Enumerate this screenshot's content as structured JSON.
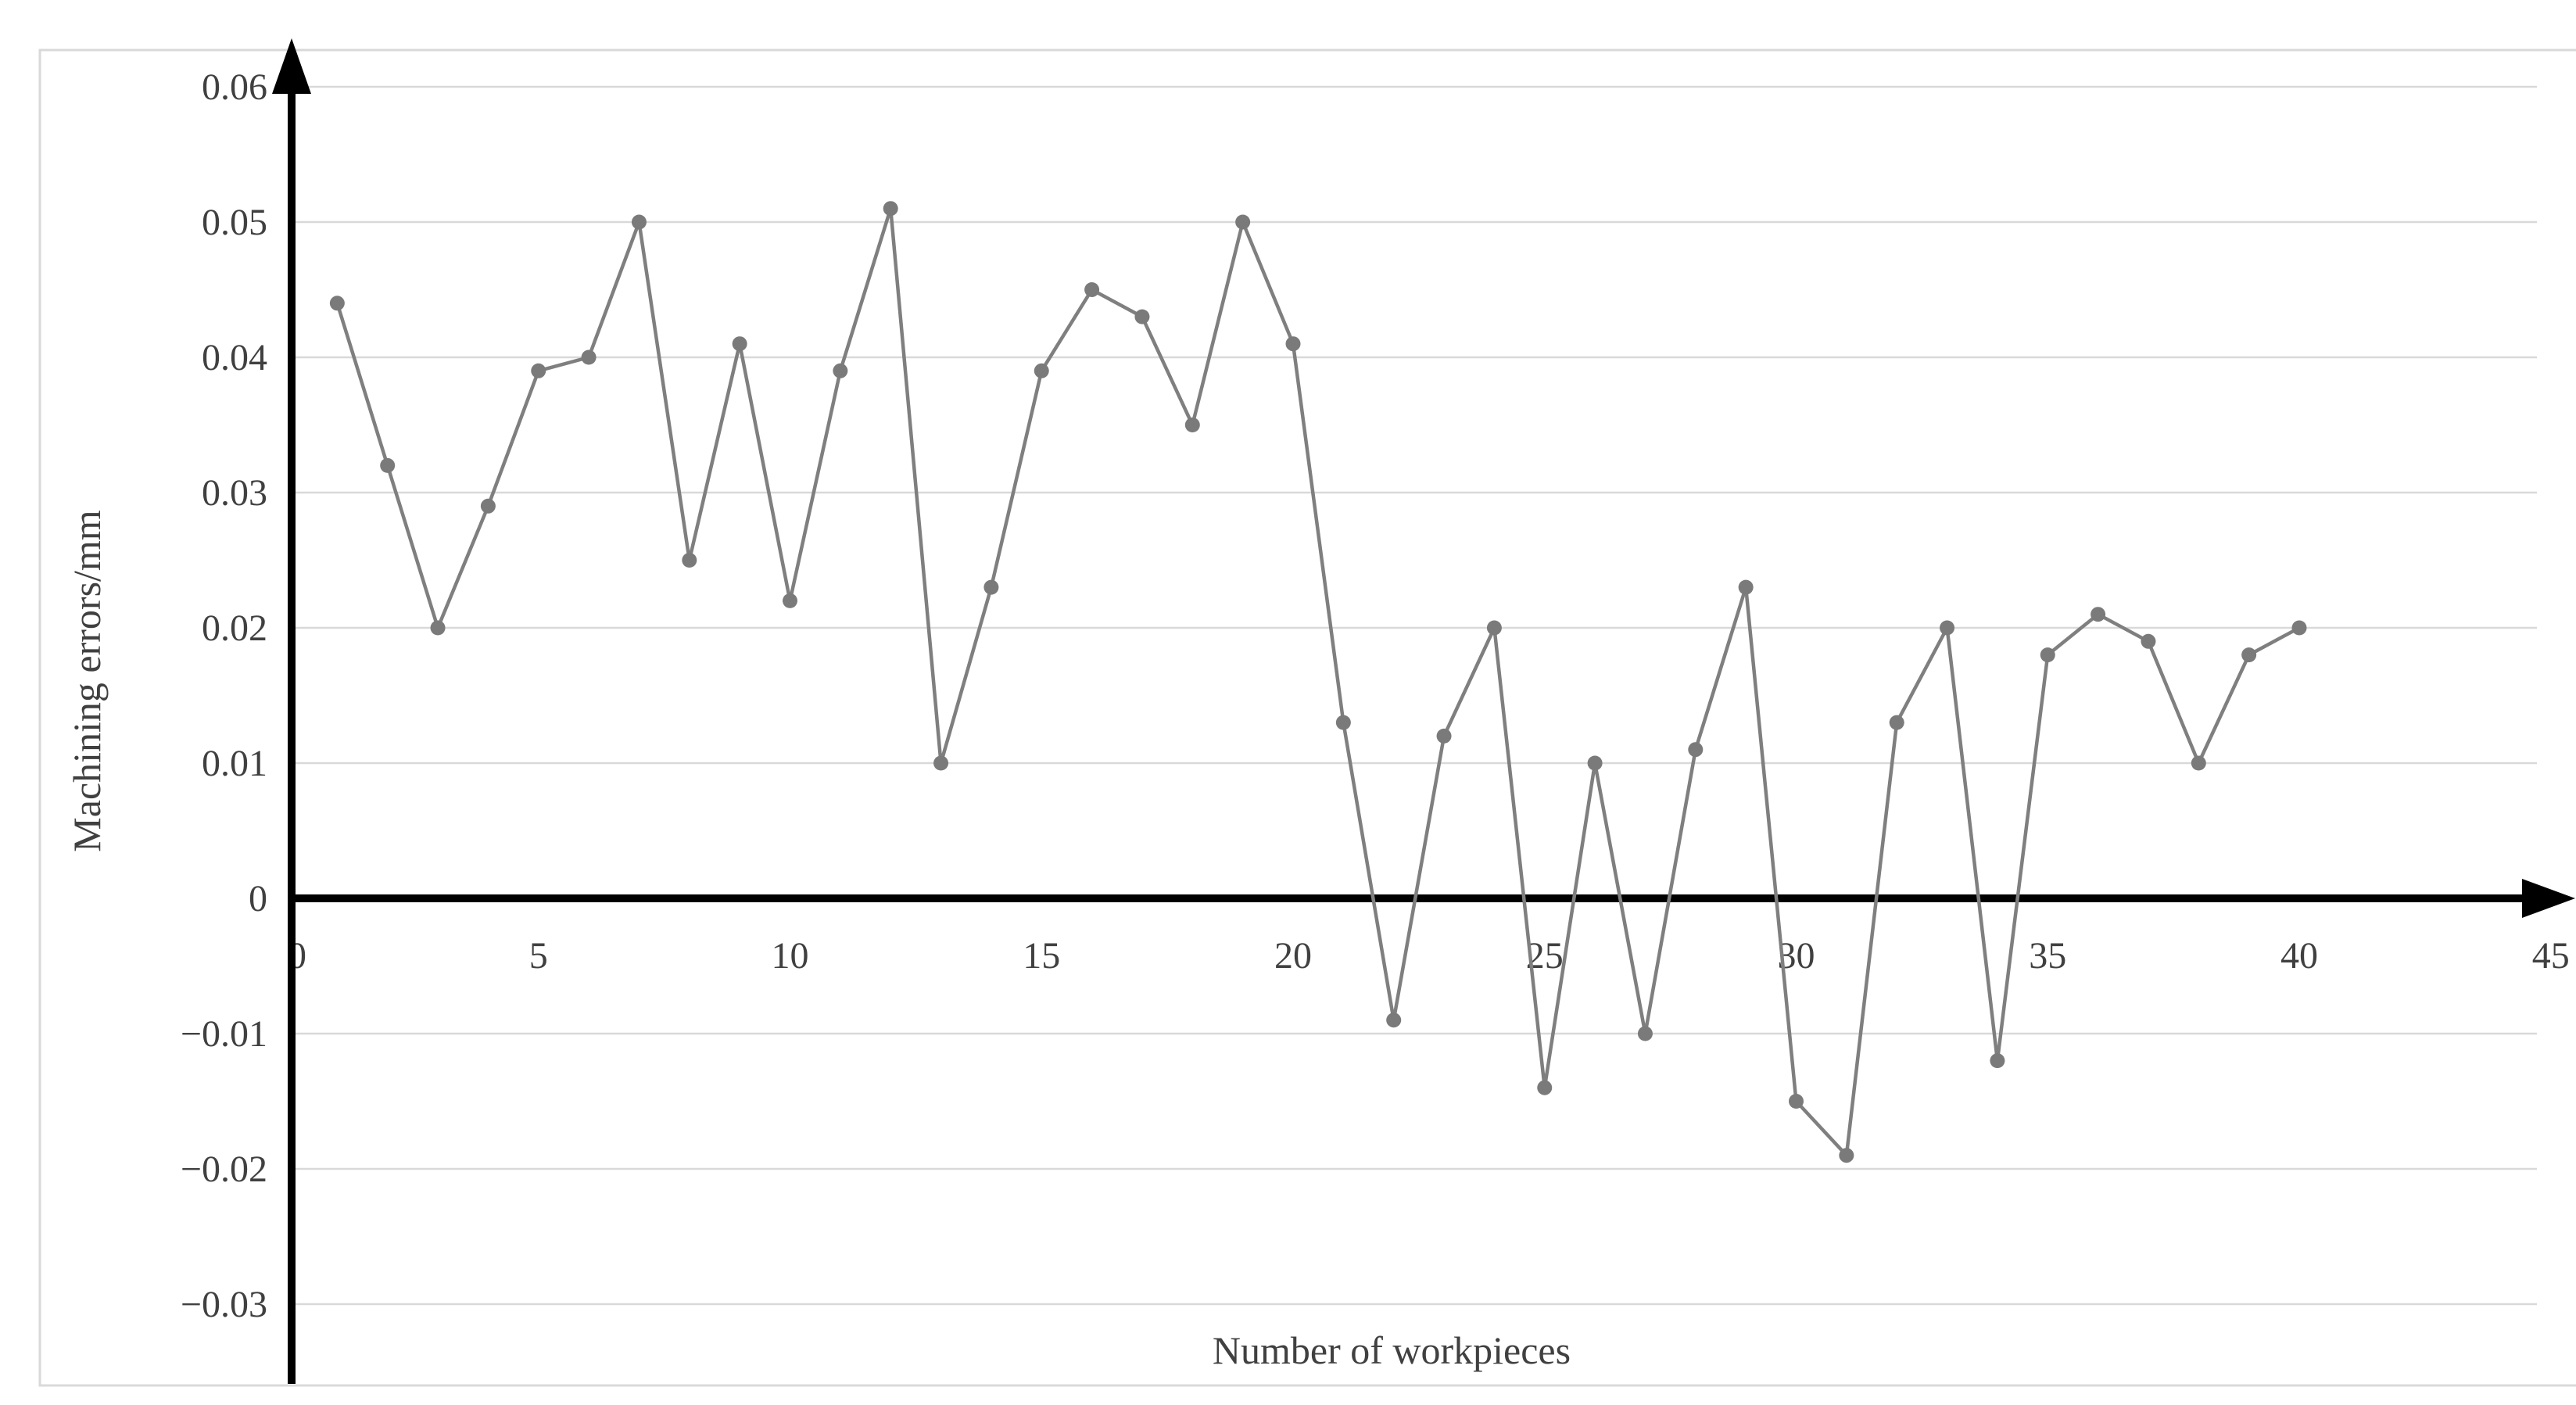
{
  "chart_data": {
    "type": "line",
    "title": "",
    "xlabel": "Number of workpieces",
    "ylabel": "Machining errors/mm",
    "series": [
      {
        "name": "Machining errors",
        "x": [
          1,
          2,
          3,
          4,
          5,
          6,
          7,
          8,
          9,
          10,
          11,
          12,
          13,
          14,
          15,
          16,
          17,
          18,
          19,
          20,
          21,
          22,
          23,
          24,
          25,
          26,
          27,
          28,
          29,
          30,
          31,
          32,
          33,
          34,
          35,
          36,
          37,
          38,
          39,
          40
        ],
        "values": [
          0.044,
          0.032,
          0.02,
          0.029,
          0.039,
          0.04,
          0.05,
          0.025,
          0.041,
          0.022,
          0.039,
          0.051,
          0.01,
          0.023,
          0.039,
          0.045,
          0.043,
          0.035,
          0.05,
          0.041,
          0.013,
          -0.009,
          0.012,
          0.02,
          -0.014,
          0.01,
          -0.01,
          0.011,
          0.023,
          -0.015,
          -0.019,
          0.013,
          0.02,
          -0.012,
          0.018,
          0.021,
          0.019,
          0.01,
          0.018,
          0.02
        ]
      }
    ],
    "xlim": [
      0,
      45
    ],
    "ylim": [
      -0.0302,
      0.0626
    ],
    "x_ticks": [
      0,
      5,
      10,
      15,
      20,
      25,
      30,
      35,
      40,
      45
    ],
    "x_tick_labels": [
      "0",
      "5",
      "10",
      "15",
      "20",
      "25",
      "30",
      "35",
      "40",
      "45"
    ],
    "y_ticks": [
      0.06,
      0.05,
      0.04,
      0.03,
      0.02,
      0.01,
      0,
      -0.01,
      -0.02,
      -0.03
    ],
    "y_tick_labels": [
      "0.06",
      "0.05",
      "0.04",
      "0.03",
      "0.02",
      "0.01",
      "0",
      "−0.01",
      "−0.02",
      "−0.03"
    ],
    "grid": "horizontal-only",
    "legend_position": "none",
    "marker": "circle",
    "colors": {
      "series_line": "#7f7f7f",
      "series_marker": "#7a7a7a",
      "gridline": "#d9d9d9",
      "axis": "#000000",
      "tick_label": "#404040",
      "chart_border": "#d9d9d9",
      "background": "#ffffff"
    }
  }
}
